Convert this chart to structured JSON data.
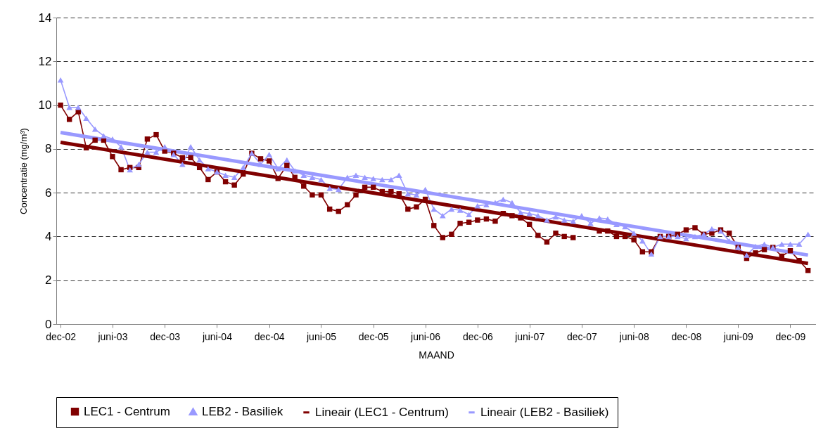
{
  "chart_data": {
    "type": "line",
    "xlabel": "MAAND",
    "ylabel": "Concentratie (mg/m³)",
    "x": [
      "2002-12",
      "2003-01",
      "2003-02",
      "2003-03",
      "2003-04",
      "2003-05",
      "2003-06",
      "2003-07",
      "2003-08",
      "2003-09",
      "2003-10",
      "2003-11",
      "2003-12",
      "2004-01",
      "2004-02",
      "2004-03",
      "2004-04",
      "2004-05",
      "2004-06",
      "2004-07",
      "2004-08",
      "2004-09",
      "2004-10",
      "2004-11",
      "2004-12",
      "2005-01",
      "2005-02",
      "2005-03",
      "2005-04",
      "2005-05",
      "2005-06",
      "2005-07",
      "2005-08",
      "2005-09",
      "2005-10",
      "2005-11",
      "2005-12",
      "2006-01",
      "2006-02",
      "2006-03",
      "2006-04",
      "2006-05",
      "2006-06",
      "2006-07",
      "2006-08",
      "2006-09",
      "2006-10",
      "2006-11",
      "2006-12",
      "2007-01",
      "2007-02",
      "2007-03",
      "2007-04",
      "2007-05",
      "2007-06",
      "2007-07",
      "2007-08",
      "2007-09",
      "2007-10",
      "2007-11",
      "2007-12",
      "2008-01",
      "2008-02",
      "2008-03",
      "2008-04",
      "2008-05",
      "2008-06",
      "2008-07",
      "2008-08",
      "2008-09",
      "2008-10",
      "2008-11",
      "2008-12",
      "2009-01",
      "2009-02",
      "2009-03",
      "2009-04",
      "2009-05",
      "2009-06",
      "2009-07",
      "2009-08",
      "2009-09",
      "2009-10",
      "2009-11",
      "2009-12",
      "2010-01",
      "2010-02"
    ],
    "series": [
      {
        "name": "LEC1 - Centrum",
        "color": "#800000",
        "marker": "square",
        "values": [
          10.0,
          9.35,
          9.7,
          8.05,
          8.4,
          8.4,
          7.65,
          7.05,
          7.15,
          7.15,
          8.45,
          8.65,
          7.9,
          7.8,
          7.6,
          7.6,
          7.15,
          6.6,
          6.95,
          6.5,
          6.35,
          6.85,
          7.8,
          7.55,
          7.45,
          6.65,
          7.25,
          6.7,
          6.3,
          5.9,
          5.9,
          5.25,
          5.15,
          5.45,
          5.9,
          6.25,
          6.25,
          6.05,
          6.05,
          5.95,
          5.25,
          5.35,
          5.7,
          4.5,
          3.95,
          4.1,
          4.6,
          4.65,
          4.75,
          4.8,
          4.7,
          5.05,
          4.95,
          4.85,
          4.55,
          4.05,
          3.75,
          4.15,
          4.0,
          3.95,
          null,
          null,
          4.25,
          4.25,
          4.0,
          4.0,
          3.85,
          3.3,
          3.3,
          4.0,
          4.0,
          4.1,
          4.3,
          4.4,
          4.1,
          4.15,
          4.3,
          4.15,
          3.5,
          3.0,
          3.25,
          3.4,
          3.5,
          3.1,
          3.35,
          2.9,
          2.45
        ]
      },
      {
        "name": "LEB2 - Basiliek",
        "color": "#9999ff",
        "marker": "triangle",
        "values": [
          11.15,
          9.9,
          9.9,
          9.4,
          8.9,
          8.6,
          8.45,
          8.1,
          7.05,
          7.3,
          7.85,
          7.85,
          8.1,
          7.75,
          7.3,
          8.1,
          7.5,
          7.1,
          6.95,
          6.8,
          6.7,
          7.15,
          7.8,
          7.3,
          7.75,
          7.1,
          7.5,
          7.0,
          6.8,
          6.7,
          6.6,
          6.2,
          6.15,
          6.7,
          6.8,
          6.7,
          6.65,
          6.6,
          6.6,
          6.8,
          5.95,
          5.9,
          6.15,
          5.25,
          4.95,
          5.25,
          5.2,
          5.0,
          5.4,
          5.45,
          5.55,
          5.7,
          5.55,
          5.1,
          5.05,
          4.95,
          4.75,
          4.9,
          4.75,
          4.7,
          4.95,
          4.6,
          4.85,
          4.8,
          4.55,
          4.45,
          4.15,
          3.8,
          3.2,
          4.0,
          4.0,
          4.0,
          3.9,
          4.0,
          4.1,
          4.35,
          4.25,
          3.8,
          3.5,
          3.15,
          3.55,
          3.65,
          3.5,
          3.65,
          3.65,
          3.65,
          4.1
        ]
      },
      {
        "name": "Lineair (LEC1 - Centrum)",
        "color": "#800000",
        "marker": "none",
        "x": [
          "2002-12",
          "2010-02"
        ],
        "values": [
          8.3,
          2.77
        ]
      },
      {
        "name": "Lineair (LEB2 - Basiliek)",
        "color": "#9999ff",
        "marker": "none",
        "x": [
          "2002-12",
          "2010-02"
        ],
        "values": [
          8.75,
          3.15
        ]
      }
    ],
    "xlim": [
      "2002-11-16",
      "2010-03"
    ],
    "xticks": [
      {
        "value": "2002-12",
        "label": "dec-02"
      },
      {
        "value": "2003-06",
        "label": "juni-03"
      },
      {
        "value": "2003-12",
        "label": "dec-03"
      },
      {
        "value": "2004-06",
        "label": "juni-04"
      },
      {
        "value": "2004-12",
        "label": "dec-04"
      },
      {
        "value": "2005-06",
        "label": "juni-05"
      },
      {
        "value": "2005-12",
        "label": "dec-05"
      },
      {
        "value": "2006-06",
        "label": "juni-06"
      },
      {
        "value": "2006-12",
        "label": "dec-06"
      },
      {
        "value": "2007-06",
        "label": "juni-07"
      },
      {
        "value": "2007-12",
        "label": "dec-07"
      },
      {
        "value": "2008-06",
        "label": "juni-08"
      },
      {
        "value": "2008-12",
        "label": "dec-08"
      },
      {
        "value": "2009-06",
        "label": "juni-09"
      },
      {
        "value": "2009-12",
        "label": "dec-09"
      }
    ],
    "ylim": [
      0,
      14
    ],
    "yticks": [
      0,
      2,
      4,
      6,
      8,
      10,
      12,
      14
    ],
    "grid": "y",
    "legend": "bottom"
  }
}
